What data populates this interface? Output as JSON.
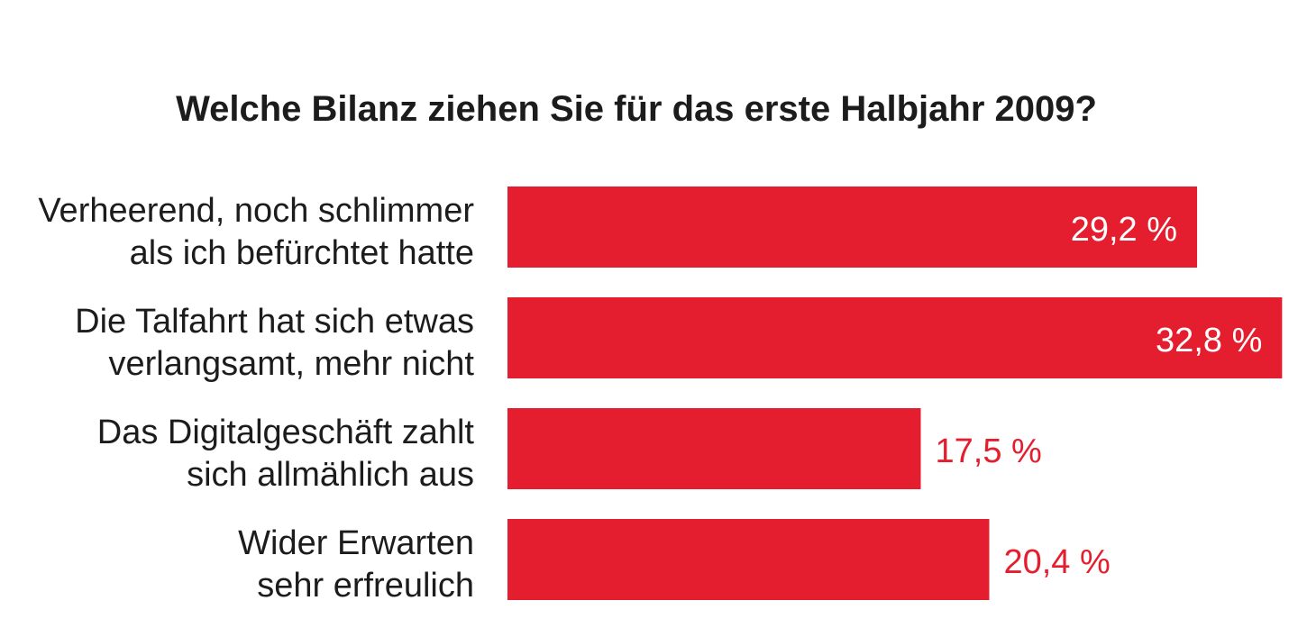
{
  "chart_data": {
    "type": "bar",
    "orientation": "horizontal",
    "title": "Welche Bilanz ziehen Sie für das erste Halbjahr 2009?",
    "categories": [
      [
        "Verheerend, noch schlimmer",
        "als ich befürchtet hatte"
      ],
      [
        "Die Talfahrt hat sich etwas",
        "verlangsamt, mehr nicht"
      ],
      [
        "Das Digitalgeschäft zahlt",
        "sich allmählich aus"
      ],
      [
        "Wider Erwarten",
        "sehr erfreulich"
      ]
    ],
    "values": [
      29.2,
      32.8,
      17.5,
      20.4
    ],
    "value_labels": [
      "29,2 %",
      "32,8 %",
      "17,5 %",
      "20,4 %"
    ],
    "bar_color": "#e41e2f",
    "label_inside_color": "#ffffff",
    "label_outside_color": "#e41e2f",
    "text_color": "#1c1c1c",
    "grid": false,
    "legend": "none"
  }
}
